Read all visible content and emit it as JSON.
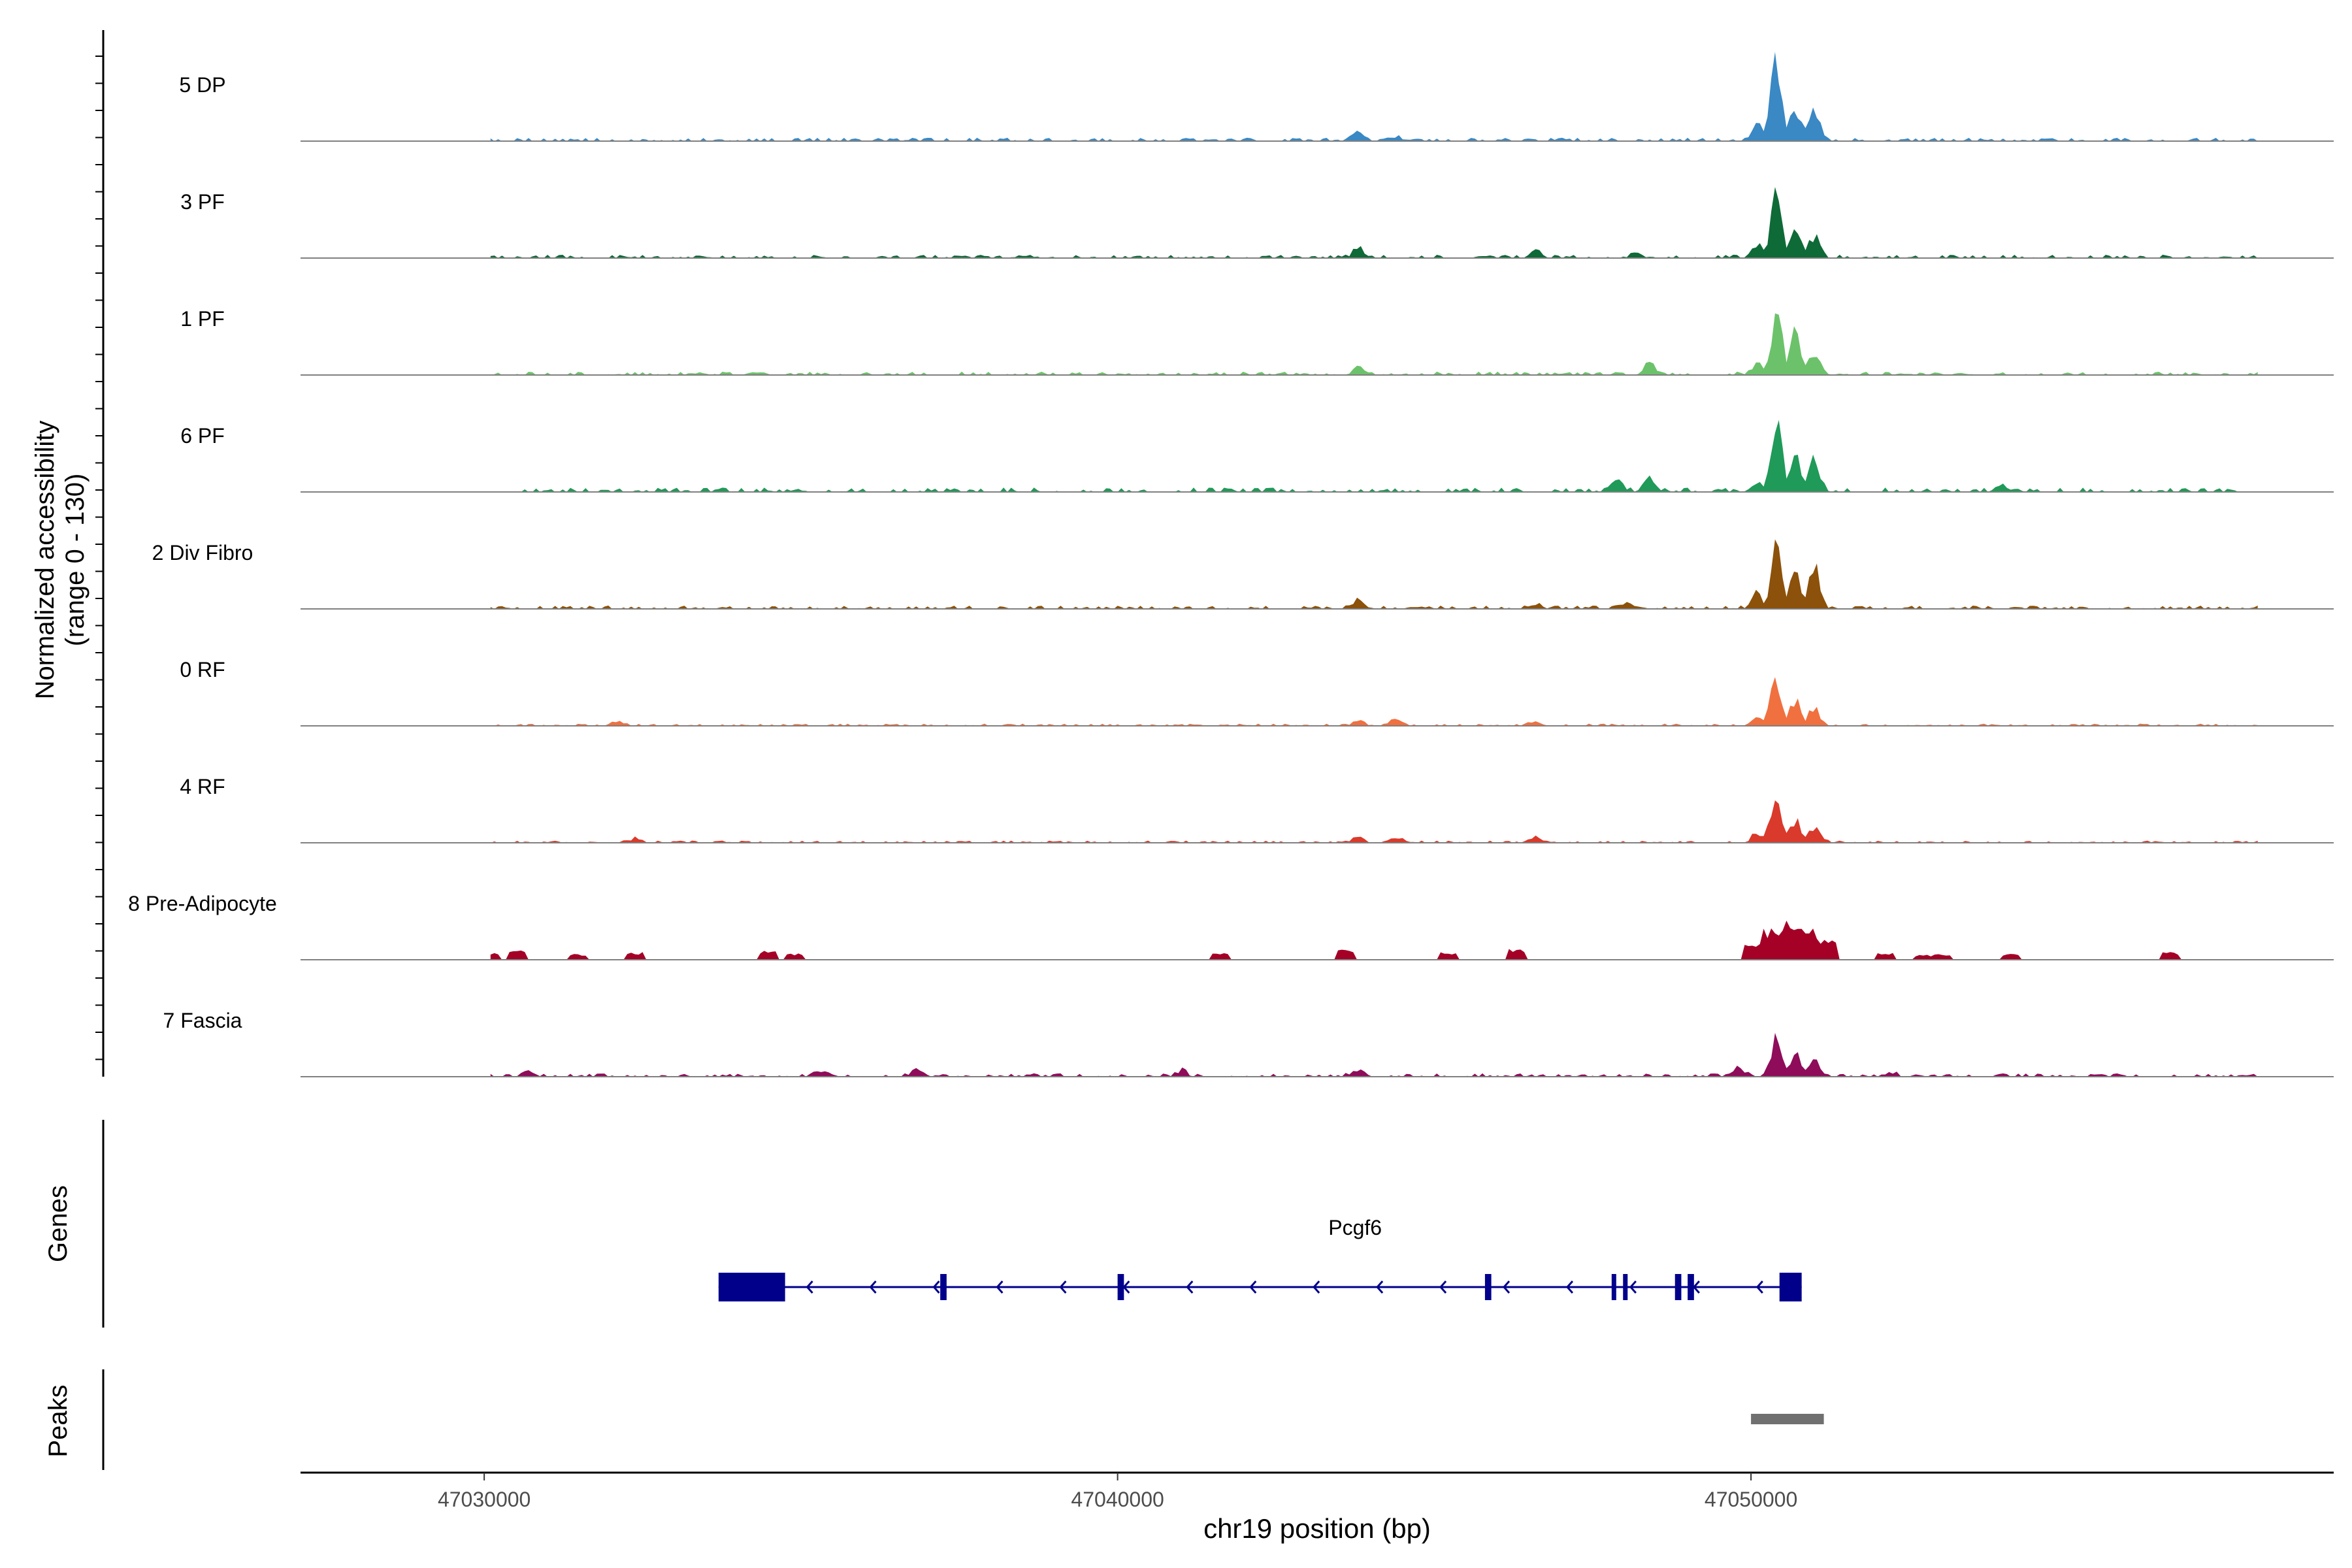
{
  "chart_data": {
    "type": "area",
    "title": "",
    "x_axis": {
      "label": "chr19 position (bp)",
      "range": [
        47027100,
        47059200
      ],
      "ticks": [
        47030000,
        47040000,
        47050000
      ],
      "tick_labels": [
        "47030000",
        "47040000",
        "47050000"
      ]
    },
    "y_axis": {
      "label_line1": "Normalized accessibility",
      "label_line2": "(range 0 - 130)",
      "range": [
        0,
        130
      ]
    },
    "track_labels": {
      "genes": "Genes",
      "peaks": "Peaks"
    },
    "tracks": [
      {
        "name": "5 DP",
        "color": "#3A88C4",
        "peaks": [
          [
            47050400,
            100
          ],
          [
            47050700,
            40
          ],
          [
            47051000,
            35
          ],
          [
            47050100,
            18
          ],
          [
            47043800,
            8
          ],
          [
            47044400,
            4
          ]
        ],
        "noise": 3,
        "seed": 1
      },
      {
        "name": "3 PF",
        "color": "#0E6A37",
        "peaks": [
          [
            47050400,
            68
          ],
          [
            47050700,
            32
          ],
          [
            47051000,
            27
          ],
          [
            47050100,
            15
          ],
          [
            47043800,
            9
          ],
          [
            47046600,
            8
          ],
          [
            47048200,
            5
          ]
        ],
        "noise": 3,
        "seed": 2
      },
      {
        "name": "1 PF",
        "color": "#6CC26A",
        "peaks": [
          [
            47050400,
            72
          ],
          [
            47050700,
            48
          ],
          [
            47051000,
            30
          ],
          [
            47048400,
            16
          ],
          [
            47043800,
            9
          ],
          [
            47050100,
            12
          ]
        ],
        "noise": 3,
        "seed": 3
      },
      {
        "name": "6 PF",
        "color": "#1F9A58",
        "peaks": [
          [
            47050400,
            80
          ],
          [
            47050700,
            45
          ],
          [
            47051000,
            40
          ],
          [
            47048400,
            18
          ],
          [
            47047900,
            11
          ],
          [
            47050100,
            12
          ],
          [
            47054000,
            5
          ]
        ],
        "noise": 4,
        "seed": 4
      },
      {
        "name": "2 Div Fibro",
        "color": "#8C510A",
        "peaks": [
          [
            47050400,
            75
          ],
          [
            47050700,
            44
          ],
          [
            47051000,
            50
          ],
          [
            47050100,
            18
          ],
          [
            47043800,
            9
          ],
          [
            47046600,
            6
          ],
          [
            47048000,
            7
          ]
        ],
        "noise": 3,
        "seed": 5
      },
      {
        "name": "0 RF",
        "color": "#F07040",
        "peaks": [
          [
            47050400,
            55
          ],
          [
            47050700,
            30
          ],
          [
            47051000,
            22
          ],
          [
            47050100,
            10
          ],
          [
            47044400,
            8
          ],
          [
            47043800,
            6
          ],
          [
            47032100,
            6
          ],
          [
            47046600,
            5
          ]
        ],
        "noise": 2,
        "seed": 6
      },
      {
        "name": "4 RF",
        "color": "#D93A2B",
        "peaks": [
          [
            47050400,
            58
          ],
          [
            47050700,
            28
          ],
          [
            47051000,
            20
          ],
          [
            47050100,
            10
          ],
          [
            47043800,
            7
          ],
          [
            47046600,
            6
          ],
          [
            47032400,
            6
          ],
          [
            47044400,
            5
          ]
        ],
        "noise": 2,
        "seed": 7
      },
      {
        "name": "8 Pre-Adipocyte",
        "color": "#A50026",
        "peaks": [
          [
            47050600,
            48
          ],
          [
            47050300,
            38
          ],
          [
            47050900,
            40
          ],
          [
            47050000,
            20
          ],
          [
            47051200,
            24
          ],
          [
            47030500,
            12
          ],
          [
            47032400,
            10
          ],
          [
            47034500,
            12
          ],
          [
            47043600,
            12
          ],
          [
            47046300,
            14
          ],
          [
            47045200,
            9
          ],
          [
            47052100,
            10
          ],
          [
            47056600,
            9
          ],
          [
            47030100,
            8
          ],
          [
            47031500,
            7
          ],
          [
            47034900,
            8
          ],
          [
            47041600,
            8
          ],
          [
            47053000,
            7
          ],
          [
            47054100,
            7
          ],
          [
            47052700,
            6
          ]
        ],
        "noise": 0,
        "seed": 8
      },
      {
        "name": "7 Fascia",
        "color": "#8E0C5A",
        "peaks": [
          [
            47050400,
            40
          ],
          [
            47050700,
            26
          ],
          [
            47051000,
            18
          ],
          [
            47049800,
            9
          ],
          [
            47043800,
            8
          ],
          [
            47041000,
            6
          ],
          [
            47030700,
            6
          ],
          [
            47036800,
            6
          ],
          [
            47035300,
            5
          ],
          [
            47052200,
            5
          ]
        ],
        "noise": 3,
        "seed": 9
      }
    ],
    "gene": {
      "name": "Pcgf6",
      "strand": "-",
      "start": 47033700,
      "end": 47050800,
      "exons": [
        [
          47033700,
          47034750
        ],
        [
          47037200,
          47037300
        ],
        [
          47040000,
          47040100
        ],
        [
          47045800,
          47045900
        ],
        [
          47047800,
          47047850
        ],
        [
          47047980,
          47048040
        ],
        [
          47048800,
          47048900
        ],
        [
          47049000,
          47049100
        ],
        [
          47050450,
          47050800
        ]
      ],
      "utr_bars": [
        [
          47033700,
          47034750
        ],
        [
          47050450,
          47050800
        ]
      ],
      "color": "#00008B"
    },
    "peak_regions": [
      [
        47050000,
        47051150
      ]
    ]
  }
}
